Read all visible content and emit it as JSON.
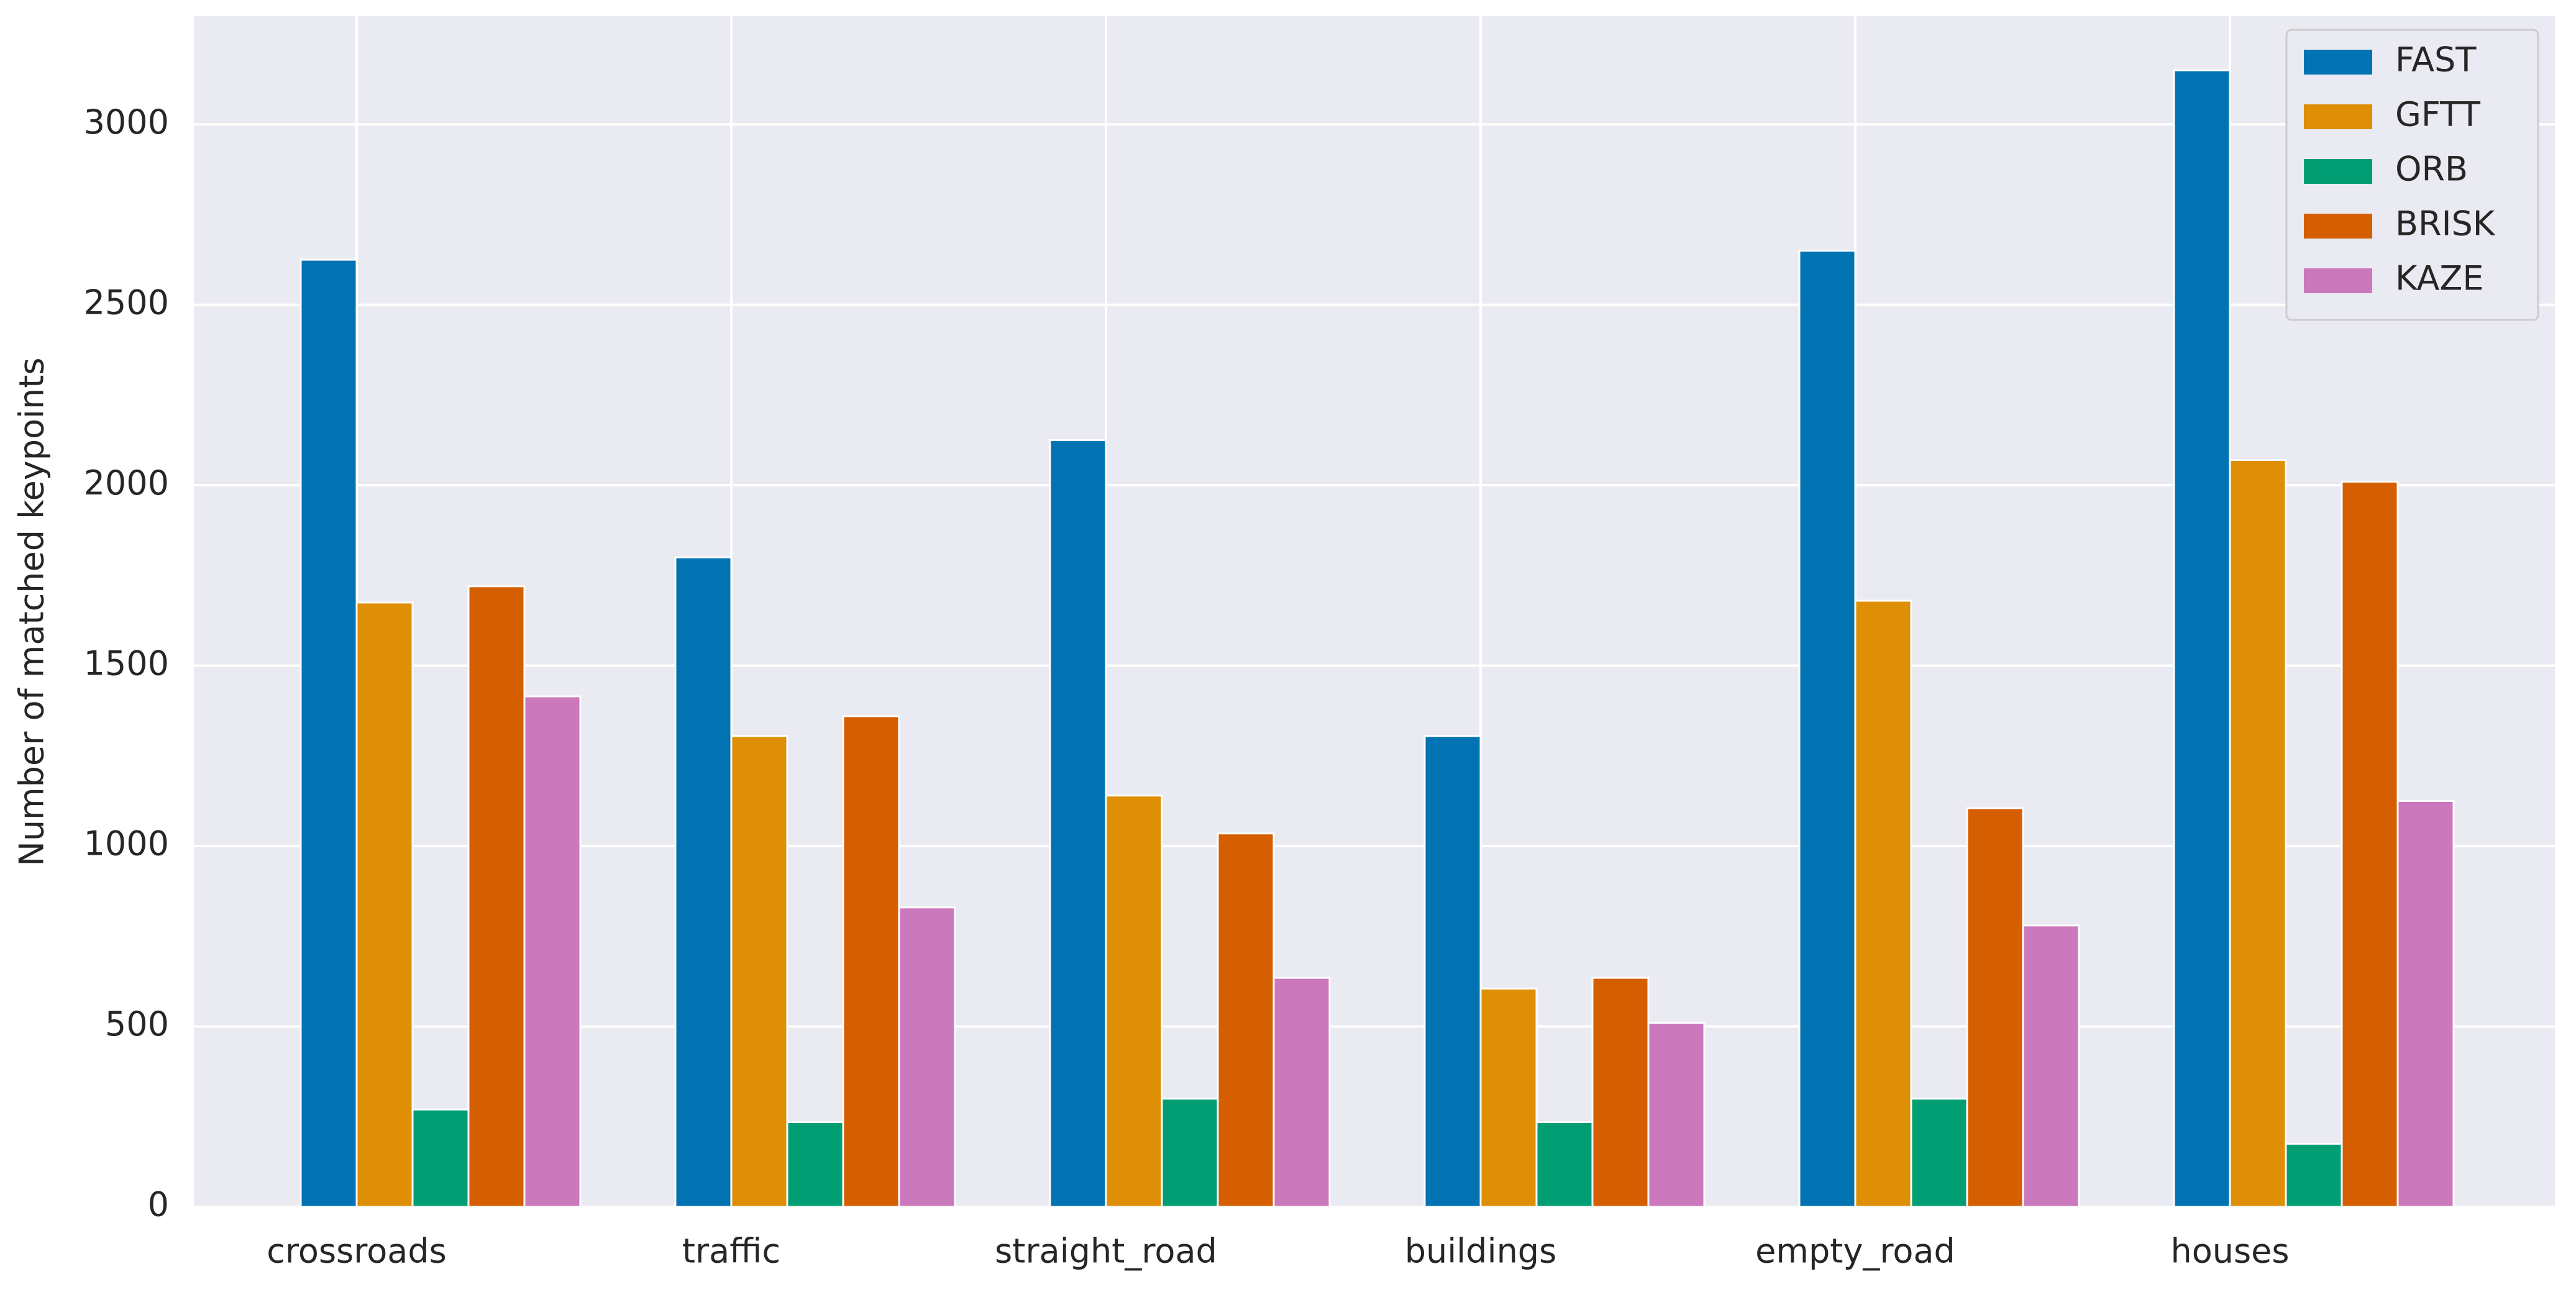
{
  "chart_data": {
    "type": "bar",
    "y_label": "Number of matched keypoints",
    "categories": [
      "crossroads",
      "traffic",
      "straight_road",
      "buildings",
      "empty_road",
      "houses"
    ],
    "series": [
      {
        "name": "FAST",
        "color": "#0173b2",
        "values": [
          2625,
          1800,
          2125,
          1305,
          2650,
          3150
        ]
      },
      {
        "name": "GFTT",
        "color": "#de8f05",
        "values": [
          1675,
          1305,
          1140,
          605,
          1680,
          2070
        ]
      },
      {
        "name": "ORB",
        "color": "#029e73",
        "values": [
          270,
          235,
          300,
          235,
          300,
          175
        ]
      },
      {
        "name": "BRISK",
        "color": "#d55e00",
        "values": [
          1720,
          1360,
          1035,
          635,
          1105,
          2010
        ]
      },
      {
        "name": "KAZE",
        "color": "#cc78bc",
        "values": [
          1415,
          830,
          635,
          510,
          780,
          1125
        ]
      }
    ],
    "ylim": [
      0,
      3300
    ],
    "yticks": [
      0,
      500,
      1000,
      1500,
      2000,
      2500,
      3000
    ],
    "grid": true,
    "legend": "upper right"
  }
}
